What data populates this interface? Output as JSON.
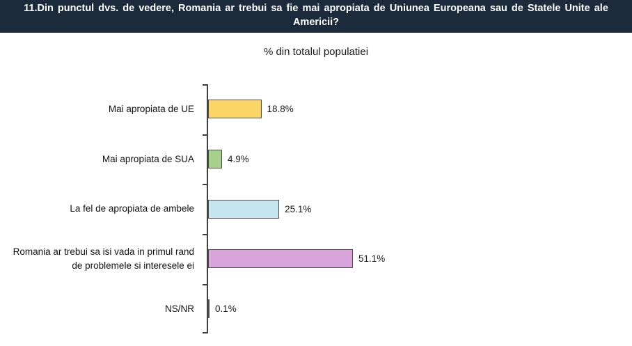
{
  "header": {
    "title": "11.Din punctul dvs. de vedere, Romania ar trebui sa fie mai apropiata de Uniunea Europeana sau de Statele Unite ale Americii?",
    "background_color": "#1C2B3B",
    "text_color": "#FFFFFF"
  },
  "chart_data": {
    "type": "bar",
    "orientation": "horizontal",
    "title": "% din totalul populatiei",
    "categories": [
      "Mai apropiata de UE",
      "Mai apropiata de SUA",
      "La fel de apropiata de ambele",
      "Romania ar trebui sa isi vada in primul rand de problemele si interesele ei",
      "NS/NR"
    ],
    "values": [
      18.8,
      4.9,
      25.1,
      51.1,
      0.1
    ],
    "value_labels": [
      "18.8%",
      "4.9%",
      "25.1%",
      "51.1%",
      "0.1%"
    ],
    "bar_colors": [
      "#FBD666",
      "#A8D08D",
      "#C6E5F0",
      "#D9A4DB",
      "#D9A4DB"
    ],
    "bar_border_color": "#4d4d4d",
    "axis_color": "#404040",
    "xlabel": "",
    "ylabel": "",
    "xlim": [
      0,
      60
    ],
    "grid": false,
    "legend": false
  }
}
